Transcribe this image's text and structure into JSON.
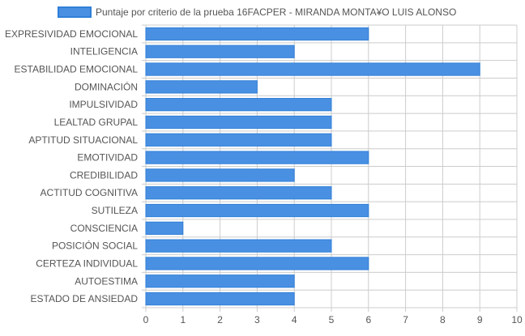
{
  "chart_data": {
    "type": "bar",
    "orientation": "horizontal",
    "categories": [
      "EXPRESIVIDAD EMOCIONAL",
      "INTELIGENCIA",
      "ESTABILIDAD EMOCIONAL",
      "DOMINACIÓN",
      "IMPULSIVIDAD",
      "LEALTAD GRUPAL",
      "APTITUD SITUACIONAL",
      "EMOTIVIDAD",
      "CREDIBILIDAD",
      "ACTITUD COGNITIVA",
      "SUTILEZA",
      "CONSCIENCIA",
      "POSICIÓN SOCIAL",
      "CERTEZA INDIVIDUAL",
      "AUTOESTIMA",
      "ESTADO DE ANSIEDAD"
    ],
    "series": [
      {
        "name": "Puntaje por criterio de la prueba 16FACPER - MIRANDA MONTA¥O LUIS ALONSO",
        "values": [
          6,
          4,
          9,
          3,
          5,
          5,
          5,
          6,
          4,
          5,
          6,
          1,
          5,
          6,
          4,
          4
        ],
        "color": "#4a90e2"
      }
    ],
    "xlim": [
      0,
      10
    ],
    "x_ticks": [
      "0",
      "1",
      "2",
      "3",
      "4",
      "5",
      "6",
      "7",
      "8",
      "9",
      "10"
    ],
    "grid": true,
    "legend_position": "top"
  },
  "colors": {
    "bar_fill": "#4a90e2",
    "bar_stroke": "#2f7fd8",
    "grid": "#cccccc",
    "text": "#555555"
  }
}
